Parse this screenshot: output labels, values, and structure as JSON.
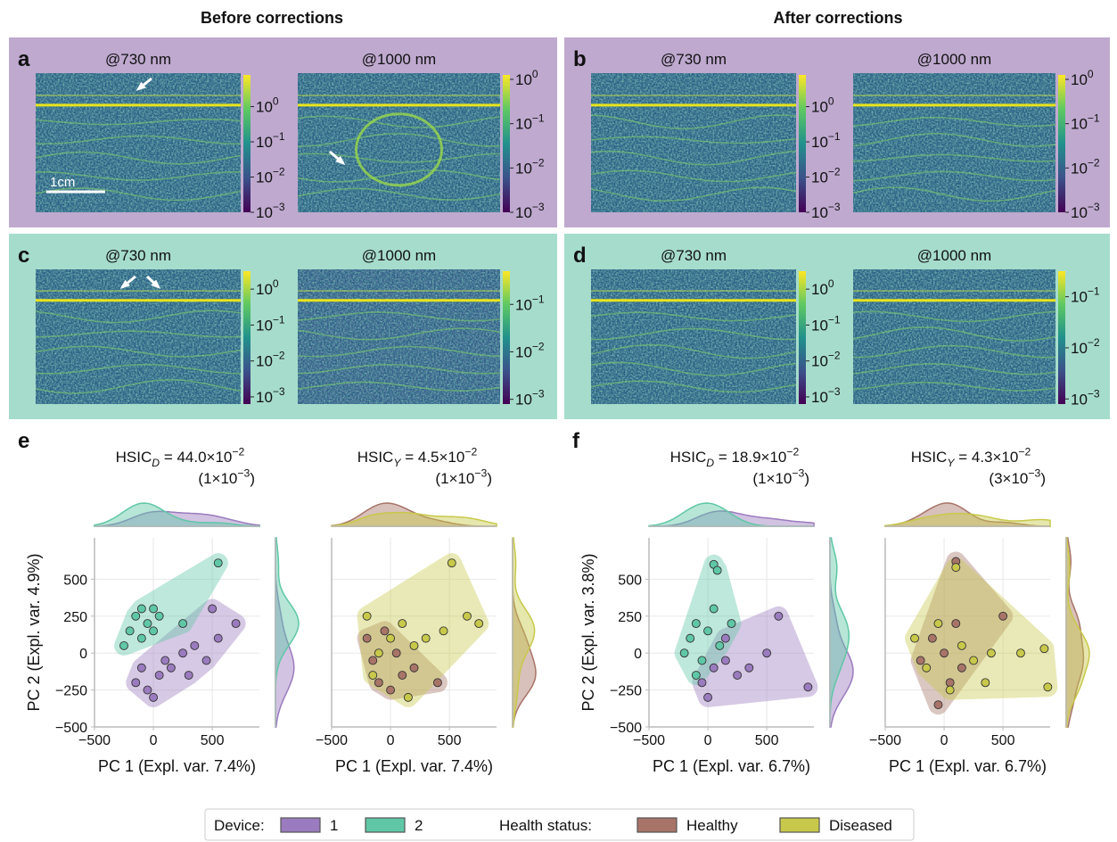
{
  "headers": [
    "Before corrections",
    "After corrections"
  ],
  "scale_bar": "1cm",
  "image_panels": [
    {
      "letter": "a",
      "background": "#bfa9cf",
      "images": [
        {
          "title": "@730 nm",
          "cbar_lim": [
            -3,
            0.9
          ],
          "cbar_ticks": [
            {
              "value": 0,
              "label": "10",
              "exponent": "0"
            },
            {
              "value": -1,
              "label": "10",
              "exponent": "−1"
            },
            {
              "value": -2,
              "label": "10",
              "exponent": "−2"
            },
            {
              "value": -3,
              "label": "10",
              "exponent": "−3"
            }
          ]
        },
        {
          "title": "@1000 nm",
          "cbar_lim": [
            -3,
            0.1
          ],
          "cbar_ticks": [
            {
              "value": 0,
              "label": "10",
              "exponent": "0"
            },
            {
              "value": -1,
              "label": "10",
              "exponent": "−1"
            },
            {
              "value": -2,
              "label": "10",
              "exponent": "−2"
            },
            {
              "value": -3,
              "label": "10",
              "exponent": "−3"
            }
          ]
        }
      ]
    },
    {
      "letter": "b",
      "background": "#bfa9cf",
      "images": [
        {
          "title": "@730 nm",
          "cbar_lim": [
            -3,
            0.9
          ],
          "cbar_ticks": [
            {
              "value": 0,
              "label": "10",
              "exponent": "0"
            },
            {
              "value": -1,
              "label": "10",
              "exponent": "−1"
            },
            {
              "value": -2,
              "label": "10",
              "exponent": "−2"
            },
            {
              "value": -3,
              "label": "10",
              "exponent": "−3"
            }
          ]
        },
        {
          "title": "@1000 nm",
          "cbar_lim": [
            -3,
            0.1
          ],
          "cbar_ticks": [
            {
              "value": 0,
              "label": "10",
              "exponent": "0"
            },
            {
              "value": -1,
              "label": "10",
              "exponent": "−1"
            },
            {
              "value": -2,
              "label": "10",
              "exponent": "−2"
            },
            {
              "value": -3,
              "label": "10",
              "exponent": "−3"
            }
          ]
        }
      ]
    },
    {
      "letter": "c",
      "background": "#a6dccb",
      "images": [
        {
          "title": "@730 nm",
          "cbar_lim": [
            -3.2,
            0.5
          ],
          "cbar_ticks": [
            {
              "value": 0,
              "label": "10",
              "exponent": "0"
            },
            {
              "value": -1,
              "label": "10",
              "exponent": "−1"
            },
            {
              "value": -2,
              "label": "10",
              "exponent": "−2"
            },
            {
              "value": -3,
              "label": "10",
              "exponent": "−3"
            }
          ]
        },
        {
          "title": "@1000 nm",
          "cbar_lim": [
            -3.1,
            -0.3
          ],
          "cbar_ticks": [
            {
              "value": -1,
              "label": "10",
              "exponent": "−1"
            },
            {
              "value": -2,
              "label": "10",
              "exponent": "−2"
            },
            {
              "value": -3,
              "label": "10",
              "exponent": "−3"
            }
          ]
        }
      ]
    },
    {
      "letter": "d",
      "background": "#a6dccb",
      "images": [
        {
          "title": "@730 nm",
          "cbar_lim": [
            -3.2,
            0.5
          ],
          "cbar_ticks": [
            {
              "value": 0,
              "label": "10",
              "exponent": "0"
            },
            {
              "value": -1,
              "label": "10",
              "exponent": "−1"
            },
            {
              "value": -2,
              "label": "10",
              "exponent": "−2"
            },
            {
              "value": -3,
              "label": "10",
              "exponent": "−3"
            }
          ]
        },
        {
          "title": "@1000 nm",
          "cbar_lim": [
            -3.1,
            -0.5
          ],
          "cbar_ticks": [
            {
              "value": -1,
              "label": "10",
              "exponent": "−1"
            },
            {
              "value": -2,
              "label": "10",
              "exponent": "−2"
            },
            {
              "value": -3,
              "label": "10",
              "exponent": "−3"
            }
          ]
        }
      ]
    }
  ],
  "chart_data": [
    {
      "type": "scatter",
      "letter": "e",
      "title": [
        {
          "text": "HSIC"
        },
        {
          "text": "D",
          "sub": true,
          "italic": true
        },
        {
          "text": " = 44.0×10"
        },
        {
          "text": "−2",
          "sup": true
        }
      ],
      "subtitle": [
        {
          "text": "(1×10"
        },
        {
          "text": "−3",
          "sup": true
        },
        {
          "text": ")"
        }
      ],
      "xlabel": "PC 1 (Expl. var. 7.4%)",
      "ylabel": "PC 2 (Expl. var. 4.9%)",
      "xlim": [
        -500,
        900
      ],
      "ylim": [
        -500,
        780
      ],
      "xticks": [
        {
          "value": -500,
          "label": "−500"
        },
        0,
        500
      ],
      "yticks": [
        {
          "value": -500,
          "label": "−500"
        },
        {
          "value": -250,
          "label": "−250"
        },
        0,
        250,
        500
      ],
      "grid": true,
      "series": [
        {
          "color": "#9b7bbf",
          "x": [
            -150,
            -50,
            50,
            150,
            250,
            350,
            450,
            550,
            700,
            -100,
            100,
            0,
            300,
            500
          ],
          "values": [
            -200,
            -250,
            -150,
            -100,
            0,
            50,
            -50,
            100,
            200,
            -100,
            -50,
            -300,
            -150,
            300
          ]
        },
        {
          "color": "#5fc7a6",
          "x": [
            -200,
            -150,
            -100,
            -50,
            0,
            50,
            -250,
            -100,
            0,
            250,
            550
          ],
          "values": [
            150,
            250,
            300,
            200,
            150,
            250,
            50,
            100,
            300,
            200,
            610
          ]
        }
      ]
    },
    {
      "type": "scatter",
      "title": [
        {
          "text": "HSIC"
        },
        {
          "text": "Y",
          "sub": true,
          "italic": true
        },
        {
          "text": " = 4.5×10"
        },
        {
          "text": "−2",
          "sup": true
        }
      ],
      "subtitle": [
        {
          "text": "(1×10"
        },
        {
          "text": "−3",
          "sup": true
        },
        {
          "text": ")"
        }
      ],
      "xlabel": "PC 1 (Expl. var. 7.4%)",
      "xlim": [
        -500,
        900
      ],
      "ylim": [
        -500,
        780
      ],
      "xticks": [
        {
          "value": -500,
          "label": "−500"
        },
        0,
        500
      ],
      "yticks": [
        -500,
        -250,
        0,
        250,
        500
      ],
      "grid": true,
      "series": [
        {
          "color": "#a87468",
          "x": [
            -200,
            -150,
            -100,
            0,
            100,
            200,
            -50,
            50,
            400
          ],
          "values": [
            100,
            -50,
            -200,
            -250,
            -150,
            -100,
            150,
            0,
            -200
          ]
        },
        {
          "color": "#c8c94a",
          "x": [
            -200,
            -100,
            0,
            100,
            200,
            300,
            450,
            650,
            750,
            520,
            -150,
            150
          ],
          "values": [
            250,
            0,
            100,
            200,
            50,
            100,
            150,
            250,
            200,
            610,
            -150,
            -300
          ]
        }
      ]
    },
    {
      "type": "scatter",
      "letter": "f",
      "title": [
        {
          "text": "HSIC"
        },
        {
          "text": "D",
          "sub": true,
          "italic": true
        },
        {
          "text": " = 18.9×10"
        },
        {
          "text": "−2",
          "sup": true
        }
      ],
      "subtitle": [
        {
          "text": "(1×10"
        },
        {
          "text": "−3",
          "sup": true
        },
        {
          "text": ")"
        }
      ],
      "xlabel": "PC 1 (Expl. var. 6.7%)",
      "ylabel": "PC 2 (Expl. var. 3.8%)",
      "xlim": [
        -500,
        900
      ],
      "ylim": [
        -500,
        780
      ],
      "xticks": [
        {
          "value": -500,
          "label": "−500"
        },
        0,
        500
      ],
      "yticks": [
        {
          "value": -500,
          "label": "−500"
        },
        {
          "value": -250,
          "label": "−250"
        },
        0,
        250,
        500
      ],
      "grid": true,
      "series": [
        {
          "color": "#9b7bbf",
          "x": [
            -50,
            50,
            150,
            250,
            350,
            500,
            600,
            850,
            0,
            150
          ],
          "values": [
            -200,
            -100,
            -50,
            -150,
            -100,
            0,
            250,
            -230,
            -300,
            100
          ]
        },
        {
          "color": "#5fc7a6",
          "x": [
            -200,
            -150,
            -100,
            -50,
            0,
            50,
            100,
            -100,
            50,
            80,
            200
          ],
          "values": [
            0,
            100,
            200,
            -50,
            150,
            300,
            50,
            -150,
            600,
            560,
            200
          ]
        }
      ]
    },
    {
      "type": "scatter",
      "title": [
        {
          "text": "HSIC"
        },
        {
          "text": "Y",
          "sub": true,
          "italic": true
        },
        {
          "text": " = 4.3×10"
        },
        {
          "text": "−2",
          "sup": true
        }
      ],
      "subtitle": [
        {
          "text": "(3×10"
        },
        {
          "text": "−3",
          "sup": true
        },
        {
          "text": ")"
        }
      ],
      "xlabel": "PC 1 (Expl. var. 6.7%)",
      "xlim": [
        -500,
        900
      ],
      "ylim": [
        -500,
        780
      ],
      "xticks": [
        {
          "value": -500,
          "label": "−500"
        },
        0,
        500
      ],
      "yticks": [
        -500,
        -250,
        0,
        250,
        500
      ],
      "grid": true,
      "series": [
        {
          "color": "#a87468",
          "x": [
            -200,
            -100,
            0,
            50,
            100,
            150,
            500,
            100,
            -50
          ],
          "values": [
            -50,
            100,
            0,
            -200,
            200,
            -100,
            250,
            620,
            -350
          ]
        },
        {
          "color": "#c8c94a",
          "x": [
            -250,
            -150,
            -50,
            50,
            150,
            250,
            400,
            650,
            850,
            880,
            100,
            350
          ],
          "values": [
            100,
            -100,
            200,
            -250,
            50,
            -50,
            0,
            0,
            30,
            -230,
            580,
            -200
          ]
        }
      ]
    }
  ],
  "legend": {
    "groups": [
      {
        "title": "Device:",
        "entries": [
          {
            "name": "1",
            "color": "#9b7bbf"
          },
          {
            "name": "2",
            "color": "#5fc7a6"
          }
        ]
      },
      {
        "title": "Health status:",
        "entries": [
          {
            "name": "Healthy",
            "color": "#a87468"
          },
          {
            "name": "Diseased",
            "color": "#c8c94a"
          }
        ]
      }
    ]
  }
}
